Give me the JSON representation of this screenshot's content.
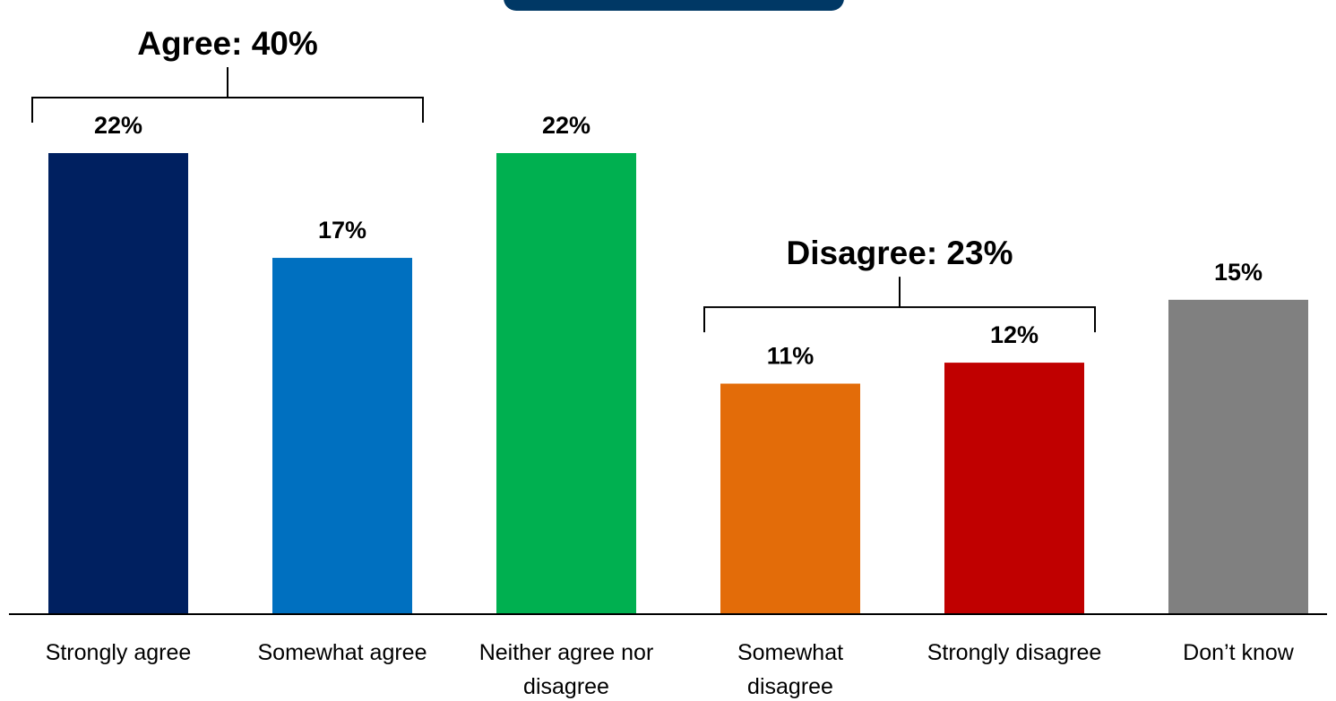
{
  "chart_data": {
    "type": "bar",
    "categories": [
      [
        "Strongly agree"
      ],
      [
        "Somewhat agree"
      ],
      [
        "Neither agree nor",
        "disagree"
      ],
      [
        "Somewhat",
        "disagree"
      ],
      [
        "Strongly disagree"
      ],
      [
        "Don’t know"
      ]
    ],
    "values": [
      22,
      17,
      22,
      11,
      12,
      15
    ],
    "value_labels": [
      "22%",
      "17%",
      "22%",
      "11%",
      "12%",
      "15%"
    ],
    "colors": [
      "#002060",
      "#0070C0",
      "#00B050",
      "#E36C09",
      "#C00000",
      "#808080"
    ],
    "groups": [
      {
        "label": "Agree: 40%",
        "categories": [
          0,
          1
        ]
      },
      {
        "label": "Disagree: 23%",
        "categories": [
          3,
          4
        ]
      }
    ],
    "ylim": [
      0,
      22
    ],
    "title": "",
    "xlabel": "",
    "ylabel": "",
    "grid": false,
    "legend": "none"
  }
}
